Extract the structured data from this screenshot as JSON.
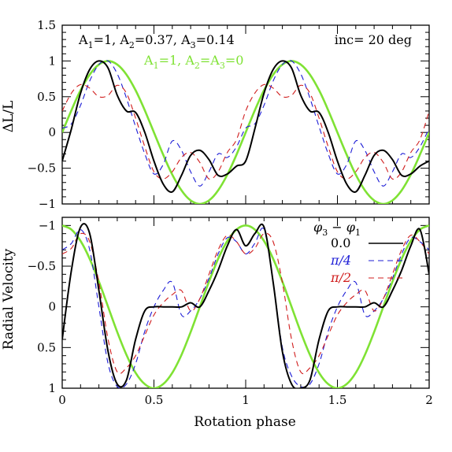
{
  "chart_data": [
    {
      "type": "line",
      "panel": "top",
      "ylabel": "ΔL/L",
      "xlim": [
        0,
        2
      ],
      "ylim": [
        -1,
        1.5
      ],
      "inverted_y": false,
      "yticks": [
        "1.5",
        "1",
        "0.5",
        "0",
        "−0.5",
        "−1"
      ],
      "annotations": {
        "black_params": {
          "A1": "A",
          "s1": "1",
          "m1": "=1, A",
          "s2": "2",
          "m2": "=0.37, A",
          "s3": "3",
          "m3": "=0.14"
        },
        "green_params": {
          "A1": "A",
          "s1": "1",
          "m1": "=1, A",
          "s2": "2",
          "m2": "=A",
          "s3": "3",
          "m3": "=0"
        },
        "inclination": "inc= 20 deg"
      },
      "series": [
        {
          "name": "0.0",
          "color": "#000000",
          "style": "solid",
          "x": [
            0,
            0.05,
            0.1,
            0.15,
            0.2,
            0.25,
            0.3,
            0.35,
            0.4,
            0.45,
            0.5,
            0.55,
            0.6,
            0.65,
            0.7,
            0.75,
            0.8,
            0.85,
            0.9,
            0.95,
            1.0,
            1.05,
            1.1,
            1.15,
            1.2,
            1.25,
            1.3,
            1.35,
            1.4,
            1.45,
            1.5,
            1.55,
            1.6,
            1.65,
            1.7,
            1.75,
            1.8,
            1.85,
            1.9,
            1.95,
            2.0
          ],
          "y": [
            -0.4,
            0.05,
            0.55,
            0.88,
            1.0,
            0.9,
            0.52,
            0.3,
            0.28,
            0.0,
            -0.4,
            -0.72,
            -0.83,
            -0.6,
            -0.32,
            -0.25,
            -0.38,
            -0.6,
            -0.58,
            -0.47,
            -0.4,
            0.05,
            0.55,
            0.88,
            1.0,
            0.9,
            0.52,
            0.3,
            0.28,
            0.0,
            -0.4,
            -0.72,
            -0.83,
            -0.6,
            -0.32,
            -0.25,
            -0.38,
            -0.6,
            -0.58,
            -0.47,
            -0.4
          ]
        },
        {
          "name": "π/4",
          "color": "#1c1cd6",
          "style": "dashed",
          "x": [
            0,
            0.05,
            0.1,
            0.15,
            0.2,
            0.25,
            0.3,
            0.35,
            0.4,
            0.45,
            0.5,
            0.55,
            0.6,
            0.65,
            0.7,
            0.75,
            0.8,
            0.85,
            0.9,
            0.95,
            1.0,
            1.05,
            1.1,
            1.15,
            1.2,
            1.25,
            1.3,
            1.35,
            1.4,
            1.45,
            1.5,
            1.55,
            1.6,
            1.65,
            1.7,
            1.75,
            1.8,
            1.85,
            1.9,
            1.95,
            2.0
          ],
          "y": [
            0.06,
            0.12,
            0.38,
            0.72,
            0.95,
            1.0,
            0.82,
            0.48,
            0.08,
            -0.3,
            -0.58,
            -0.45,
            -0.12,
            -0.25,
            -0.55,
            -0.75,
            -0.55,
            -0.3,
            -0.35,
            -0.2,
            0.06,
            0.12,
            0.38,
            0.72,
            0.95,
            1.0,
            0.82,
            0.48,
            0.08,
            -0.3,
            -0.58,
            -0.45,
            -0.12,
            -0.25,
            -0.55,
            -0.75,
            -0.55,
            -0.3,
            -0.35,
            -0.2,
            0.06
          ]
        },
        {
          "name": "π/2",
          "color": "#d01c1c",
          "style": "dashed",
          "x": [
            0,
            0.05,
            0.1,
            0.15,
            0.2,
            0.25,
            0.3,
            0.35,
            0.4,
            0.45,
            0.5,
            0.55,
            0.6,
            0.65,
            0.7,
            0.75,
            0.8,
            0.85,
            0.9,
            0.95,
            1.0,
            1.05,
            1.1,
            1.15,
            1.2,
            1.25,
            1.3,
            1.35,
            1.4,
            1.45,
            1.5,
            1.55,
            1.6,
            1.65,
            1.7,
            1.75,
            1.8,
            1.85,
            1.9,
            1.95,
            2.0
          ],
          "y": [
            0.3,
            0.55,
            0.67,
            0.62,
            0.5,
            0.52,
            0.66,
            0.55,
            0.2,
            -0.2,
            -0.55,
            -0.65,
            -0.55,
            -0.35,
            -0.28,
            -0.42,
            -0.65,
            -0.55,
            -0.28,
            -0.1,
            0.3,
            0.55,
            0.67,
            0.62,
            0.5,
            0.52,
            0.66,
            0.55,
            0.2,
            -0.2,
            -0.55,
            -0.65,
            -0.55,
            -0.35,
            -0.28,
            -0.42,
            -0.65,
            -0.55,
            -0.28,
            -0.1,
            0.3
          ]
        },
        {
          "name": "",
          "color": "#7fe234",
          "style": "solid",
          "x": [
            0,
            0.05,
            0.1,
            0.15,
            0.2,
            0.25,
            0.3,
            0.35,
            0.4,
            0.45,
            0.5,
            0.55,
            0.6,
            0.65,
            0.7,
            0.75,
            0.8,
            0.85,
            0.9,
            0.95,
            1.0,
            1.05,
            1.1,
            1.15,
            1.2,
            1.25,
            1.3,
            1.35,
            1.4,
            1.45,
            1.5,
            1.55,
            1.6,
            1.65,
            1.7,
            1.75,
            1.8,
            1.85,
            1.9,
            1.95,
            2.0
          ],
          "y": [
            0.0,
            0.31,
            0.59,
            0.81,
            0.95,
            1.0,
            0.95,
            0.81,
            0.59,
            0.31,
            0.0,
            -0.31,
            -0.59,
            -0.81,
            -0.95,
            -1.0,
            -0.95,
            -0.81,
            -0.59,
            -0.31,
            0.0,
            0.31,
            0.59,
            0.81,
            0.95,
            1.0,
            0.95,
            0.81,
            0.59,
            0.31,
            0.0,
            -0.31,
            -0.59,
            -0.81,
            -0.95,
            -1.0,
            -0.95,
            -0.81,
            -0.59,
            -0.31,
            0.0
          ]
        }
      ]
    },
    {
      "type": "line",
      "panel": "bottom",
      "xlabel": "Rotation phase",
      "ylabel": "Radial Velocity",
      "xlim": [
        0,
        2
      ],
      "ylim": [
        -1.1,
        1.0
      ],
      "inverted_y": true,
      "xticks": [
        "0",
        "0.5",
        "1",
        "1.5",
        "2"
      ],
      "yticks": [
        "−1",
        "−0.5",
        "0",
        "0.5",
        "1"
      ],
      "legend": {
        "title": {
          "phi": "φ",
          "s1": "3",
          "minus": " − ",
          "phi2": "φ",
          "s2": "1"
        },
        "placement": "top-right"
      },
      "series": [
        {
          "name": "0.0",
          "color": "#000000",
          "style": "solid",
          "x": [
            0,
            0.05,
            0.1,
            0.15,
            0.2,
            0.25,
            0.3,
            0.35,
            0.4,
            0.45,
            0.5,
            0.55,
            0.6,
            0.65,
            0.7,
            0.75,
            0.8,
            0.85,
            0.9,
            0.95,
            1.0,
            1.05,
            1.1,
            1.15,
            1.2,
            1.25,
            1.3,
            1.35,
            1.4,
            1.45,
            1.5,
            1.55,
            1.6,
            1.65,
            1.7,
            1.75,
            1.8,
            1.85,
            1.9,
            1.95,
            2.0
          ],
          "y": [
            0.4,
            -0.45,
            -0.98,
            -0.9,
            -0.2,
            0.55,
            0.95,
            0.9,
            0.4,
            0.05,
            0.0,
            0.0,
            0.0,
            0.0,
            -0.05,
            0.0,
            -0.2,
            -0.45,
            -0.75,
            -0.95,
            -0.75,
            -0.9,
            -0.98,
            -0.3,
            0.55,
            0.95,
            1.0,
            0.9,
            0.4,
            0.05,
            0.0,
            0.0,
            0.0,
            0.0,
            -0.05,
            0.0,
            -0.2,
            -0.45,
            -0.75,
            -0.95,
            -0.4
          ]
        },
        {
          "name": "π/4",
          "color": "#1c1cd6",
          "style": "dashed",
          "x": [
            0,
            0.05,
            0.1,
            0.15,
            0.2,
            0.25,
            0.3,
            0.35,
            0.4,
            0.45,
            0.5,
            0.55,
            0.6,
            0.65,
            0.7,
            0.75,
            0.8,
            0.85,
            0.9,
            0.95,
            1.0,
            1.05,
            1.1,
            1.15,
            1.2,
            1.25,
            1.3,
            1.35,
            1.4,
            1.45,
            1.5,
            1.55,
            1.6,
            1.65,
            1.7,
            1.75,
            1.8,
            1.85,
            1.9,
            1.95,
            2.0
          ],
          "y": [
            -0.7,
            -0.78,
            -0.95,
            -0.7,
            0.0,
            0.7,
            0.98,
            0.95,
            0.7,
            0.3,
            0.0,
            -0.2,
            -0.3,
            0.1,
            0.05,
            -0.1,
            -0.35,
            -0.65,
            -0.85,
            -0.8,
            -0.65,
            -0.78,
            -0.95,
            -0.3,
            0.5,
            0.85,
            0.98,
            0.95,
            0.7,
            0.3,
            0.0,
            -0.2,
            -0.3,
            0.1,
            0.05,
            -0.1,
            -0.35,
            -0.65,
            -0.85,
            -0.8,
            -0.7
          ]
        },
        {
          "name": "π/2",
          "color": "#d01c1c",
          "style": "dashed",
          "x": [
            0,
            0.05,
            0.1,
            0.15,
            0.2,
            0.25,
            0.3,
            0.35,
            0.4,
            0.45,
            0.5,
            0.55,
            0.6,
            0.65,
            0.7,
            0.75,
            0.8,
            0.85,
            0.9,
            0.95,
            1.0,
            1.05,
            1.1,
            1.15,
            1.2,
            1.25,
            1.3,
            1.35,
            1.4,
            1.45,
            1.5,
            1.55,
            1.6,
            1.65,
            1.7,
            1.75,
            1.8,
            1.85,
            1.9,
            1.95,
            2.0
          ],
          "y": [
            -0.65,
            -0.72,
            -0.9,
            -0.8,
            -0.3,
            0.4,
            0.8,
            0.75,
            0.6,
            0.35,
            0.1,
            -0.05,
            -0.15,
            -0.2,
            0.05,
            -0.1,
            -0.4,
            -0.7,
            -0.88,
            -0.8,
            -0.65,
            -0.72,
            -0.9,
            -0.8,
            -0.3,
            0.4,
            0.8,
            0.75,
            0.6,
            0.35,
            0.1,
            -0.05,
            -0.15,
            -0.2,
            0.05,
            -0.1,
            -0.4,
            -0.7,
            -0.88,
            -0.8,
            -0.65
          ]
        },
        {
          "name": "",
          "color": "#7fe234",
          "style": "solid",
          "x": [
            0,
            0.05,
            0.1,
            0.15,
            0.2,
            0.25,
            0.3,
            0.35,
            0.4,
            0.45,
            0.5,
            0.55,
            0.6,
            0.65,
            0.7,
            0.75,
            0.8,
            0.85,
            0.9,
            0.95,
            1.0,
            1.05,
            1.1,
            1.15,
            1.2,
            1.25,
            1.3,
            1.35,
            1.4,
            1.45,
            1.5,
            1.55,
            1.6,
            1.65,
            1.7,
            1.75,
            1.8,
            1.85,
            1.9,
            1.95,
            2.0
          ],
          "y": [
            -1.0,
            -0.95,
            -0.81,
            -0.59,
            -0.31,
            0.0,
            0.31,
            0.59,
            0.81,
            0.95,
            1.0,
            0.95,
            0.81,
            0.59,
            0.31,
            0.0,
            -0.31,
            -0.59,
            -0.81,
            -0.95,
            -1.0,
            -0.95,
            -0.81,
            -0.59,
            -0.31,
            0.0,
            0.31,
            0.59,
            0.81,
            0.95,
            1.0,
            0.95,
            0.81,
            0.59,
            0.31,
            0.0,
            -0.31,
            -0.59,
            -0.81,
            -0.95,
            -1.0
          ]
        }
      ]
    }
  ]
}
